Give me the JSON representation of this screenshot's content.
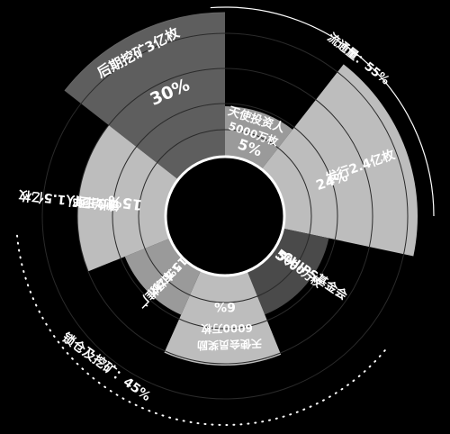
{
  "chart_data": {
    "type": "polar-area",
    "colors": {
      "background": "#000000",
      "wedge_light": "#bdbdbd",
      "wedge_mid": "#9a9a9a",
      "wedge_dark": "#5e5e5e",
      "wedge_darker": "#4a4a4a",
      "ring_line": "#ffffff"
    },
    "segments": [
      {
        "name": "后期挖矿3亿枚",
        "value_label": "30%",
        "percent": 30
      },
      {
        "name": "天使投资人",
        "sub_label": "5000万枚",
        "value_label": "5%",
        "percent": 5
      },
      {
        "name": "发行2.4亿枚",
        "value_label": "24%",
        "percent": 24
      },
      {
        "name": "CHIPS基金会",
        "sub_label": "5000万枚",
        "value_label": "5%",
        "percent": 5
      },
      {
        "name": "天使会员奖励",
        "sub_label": "6000万枚",
        "value_label": "6%",
        "percent": 6
      },
      {
        "name": "市场推广",
        "sub_label": "1.5亿枚",
        "value_label": "15%",
        "percent": 15
      },
      {
        "name": "创始团队1.5亿枚",
        "sub_label": "锁仓三年",
        "value_label": "15%",
        "percent": 15
      }
    ],
    "outer_groups": [
      {
        "name": "流通量：55%",
        "percent": 55
      },
      {
        "name": "锁仓及挖矿：45%",
        "percent": 45
      }
    ]
  }
}
